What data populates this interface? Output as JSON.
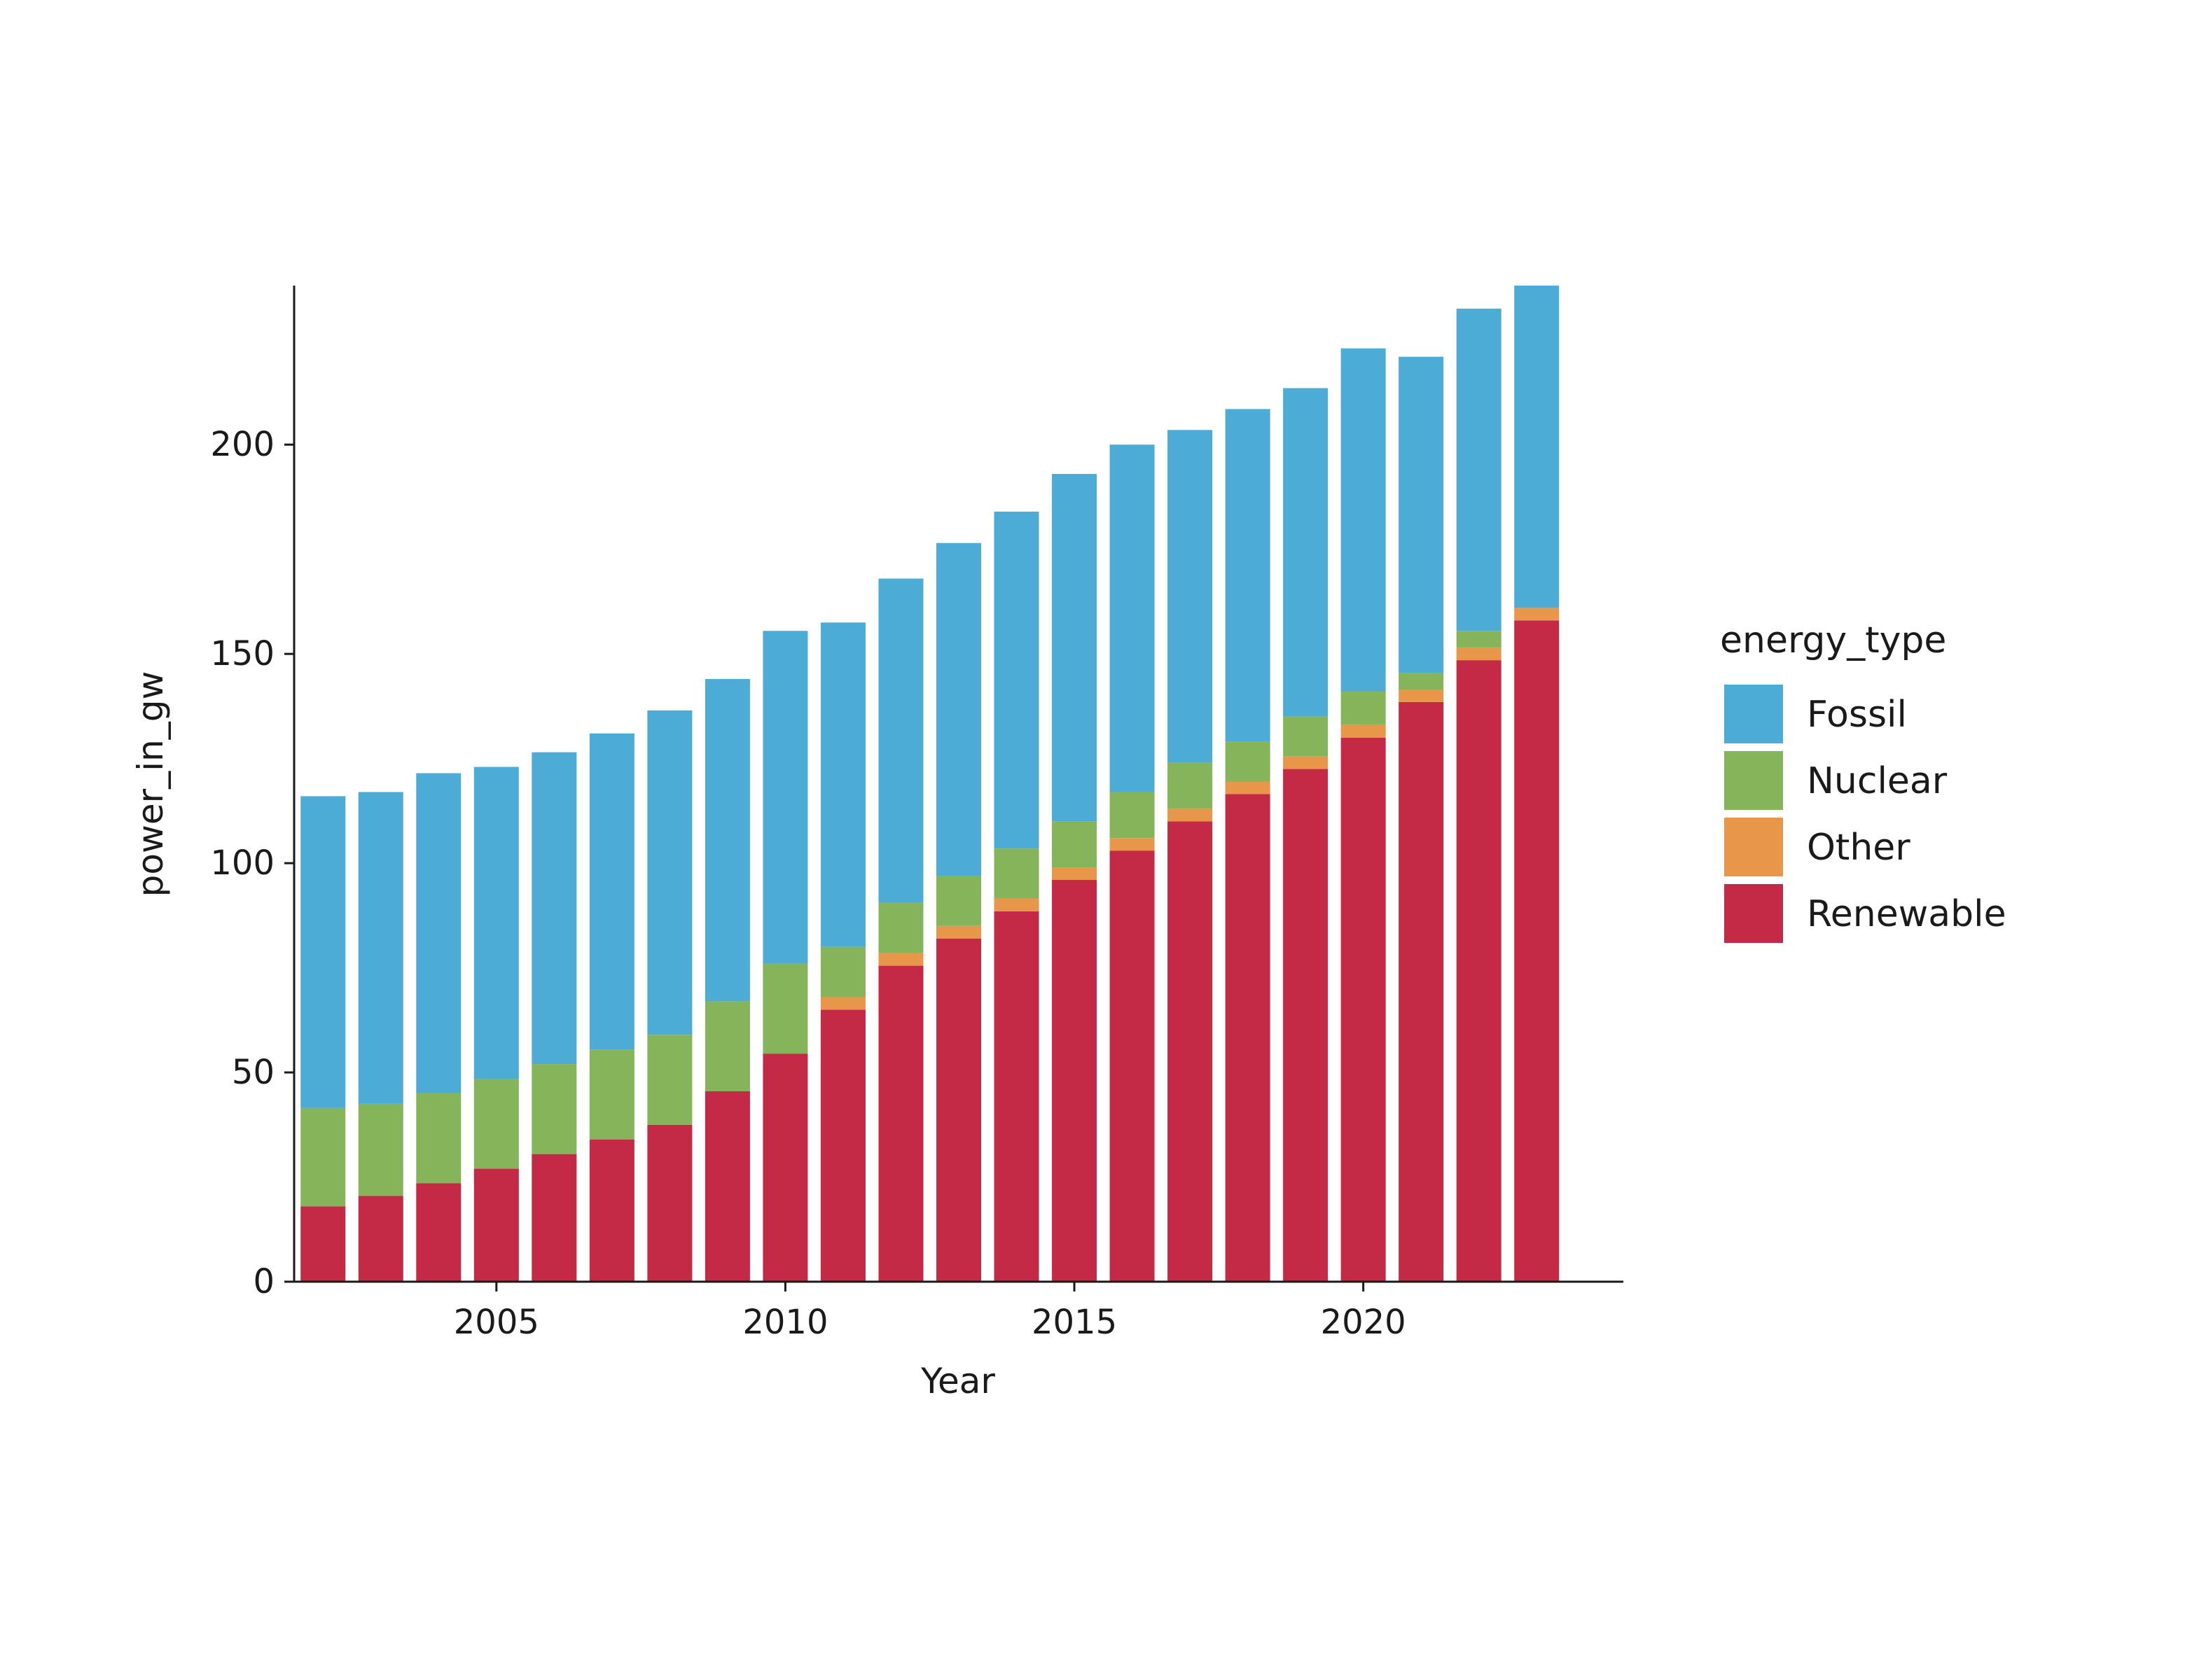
{
  "chart_data": {
    "type": "bar",
    "stacked": true,
    "xlabel": "Year",
    "ylabel": "power_in_gw",
    "ylim": [
      0,
      238
    ],
    "xlim": [
      2001.5,
      2024.5
    ],
    "x_ticks": [
      2005,
      2010,
      2015,
      2020
    ],
    "y_ticks": [
      0,
      50,
      100,
      150,
      200
    ],
    "grid": false,
    "legend_title": "energy_type",
    "legend_position": "right",
    "x": [
      2002,
      2003,
      2004,
      2005,
      2006,
      2007,
      2008,
      2009,
      2010,
      2011,
      2012,
      2013,
      2014,
      2015,
      2016,
      2017,
      2018,
      2019,
      2020,
      2021,
      2022,
      2023
    ],
    "stack_order": [
      "Renewable",
      "Other",
      "Nuclear",
      "Fossil"
    ],
    "series": [
      {
        "name": "Fossil",
        "color": "#4DACD6",
        "values": [
          74.5,
          74.5,
          76.5,
          74.5,
          74.5,
          75.5,
          77.5,
          77.0,
          79.5,
          77.5,
          77.5,
          79.5,
          80.5,
          83.0,
          83.0,
          79.5,
          79.5,
          78.5,
          82.0,
          75.5,
          77.0,
          77.0
        ]
      },
      {
        "name": "Nuclear",
        "color": "#86B45A",
        "values": [
          23.5,
          22.0,
          21.5,
          21.5,
          21.5,
          21.5,
          21.5,
          21.5,
          21.5,
          12.0,
          12.0,
          12.0,
          12.0,
          11.0,
          11.0,
          11.0,
          9.5,
          9.5,
          8.0,
          4.0,
          4.0,
          0.0
        ]
      },
      {
        "name": "Other",
        "color": "#E8964A",
        "values": [
          0.0,
          0.0,
          0.0,
          0.0,
          0.0,
          0.0,
          0.0,
          0.0,
          0.0,
          3.0,
          3.0,
          3.0,
          3.0,
          3.0,
          3.0,
          3.0,
          3.0,
          3.0,
          3.0,
          3.0,
          3.0,
          3.0
        ]
      },
      {
        "name": "Renewable",
        "color": "#C42A45",
        "values": [
          18.0,
          20.5,
          23.5,
          27.0,
          30.5,
          34.0,
          37.5,
          45.5,
          54.5,
          65.0,
          75.5,
          82.0,
          88.5,
          96.0,
          103.0,
          110.0,
          116.5,
          122.5,
          130.0,
          138.5,
          148.5,
          158.0
        ]
      }
    ]
  }
}
